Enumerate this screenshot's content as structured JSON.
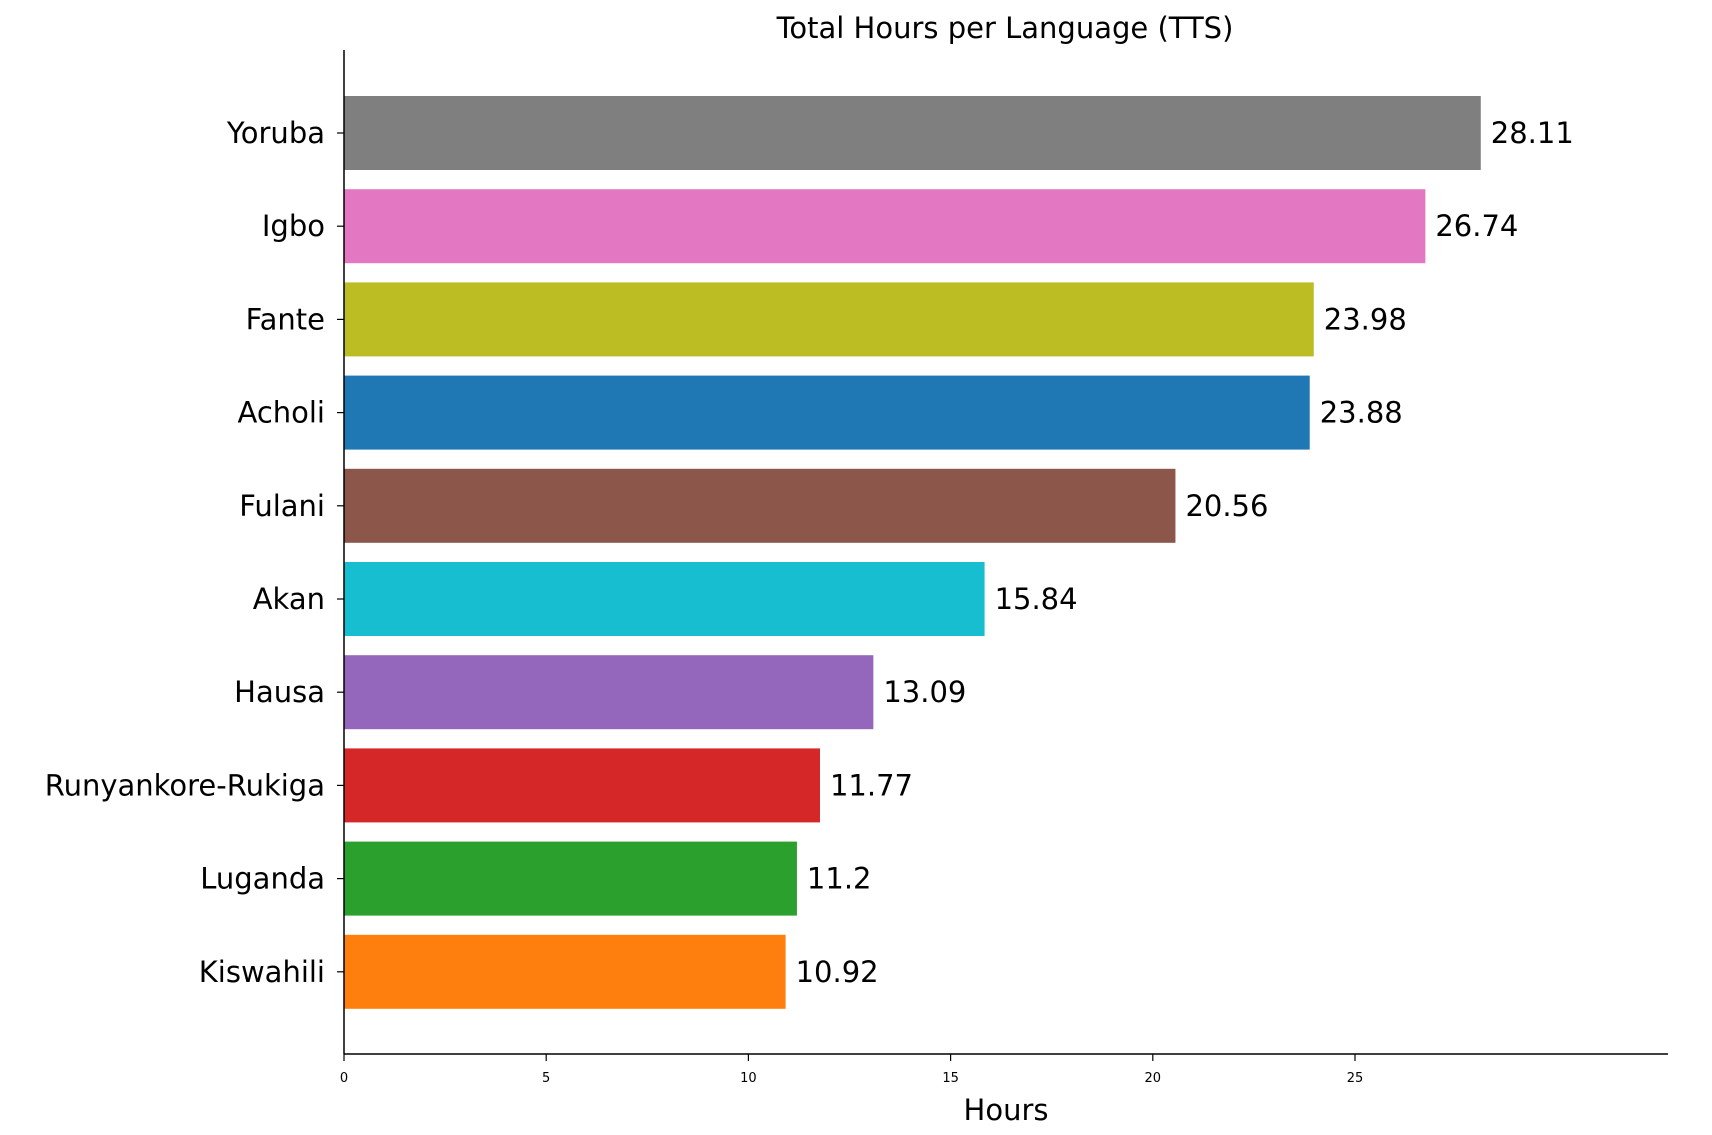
{
  "chart_data": {
    "type": "bar",
    "orientation": "horizontal",
    "title": "Total Hours per Language (TTS)",
    "xlabel": "Hours",
    "ylabel": "",
    "xlim": [
      0,
      29.5
    ],
    "xticks": [
      0,
      5,
      10,
      15,
      20,
      25
    ],
    "grid": false,
    "categories": [
      "Yoruba",
      "Igbo",
      "Fante",
      "Acholi",
      "Fulani",
      "Akan",
      "Hausa",
      "Runyankore-Rukiga",
      "Luganda",
      "Kiswahili"
    ],
    "values": [
      28.11,
      26.74,
      23.98,
      23.88,
      20.56,
      15.84,
      13.09,
      11.77,
      11.2,
      10.92
    ],
    "value_labels": [
      "28.11",
      "26.74",
      "23.98",
      "23.88",
      "20.56",
      "15.84",
      "13.09",
      "11.77",
      "11.2",
      "10.92"
    ],
    "colors": [
      "#7f7f7f",
      "#e377c2",
      "#bcbd22",
      "#1f77b4",
      "#8c564b",
      "#17becf",
      "#9467bd",
      "#d62728",
      "#2ca02c",
      "#ff7f0e"
    ]
  }
}
